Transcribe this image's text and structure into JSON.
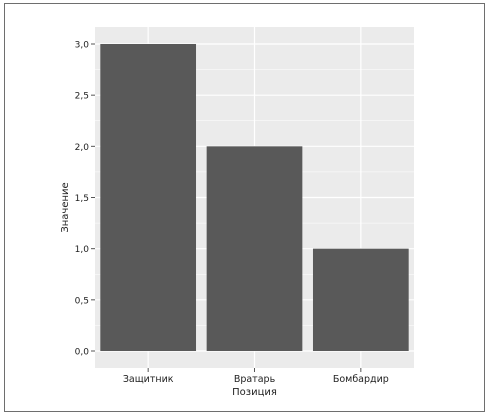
{
  "chart_data": {
    "type": "bar",
    "categories": [
      "Защитник",
      "Вратарь",
      "Бомбардир"
    ],
    "values": [
      3.0,
      2.0,
      1.0
    ],
    "title": "",
    "xlabel": "Позиция",
    "ylabel": "Значение",
    "ylim": [
      0,
      3.3
    ],
    "yticks": [
      0,
      0.5,
      1.0,
      1.5,
      2.0,
      2.5,
      3.0
    ],
    "ytick_labels": [
      "0,0",
      "0,5",
      "1,0",
      "1,5",
      "2,0",
      "2,5",
      "3,0"
    ],
    "grid": true,
    "legend": "none",
    "colors": {
      "panel": "#ebebeb",
      "gridline": "#ffffff",
      "bar": "#595959",
      "text": "#222222"
    }
  }
}
